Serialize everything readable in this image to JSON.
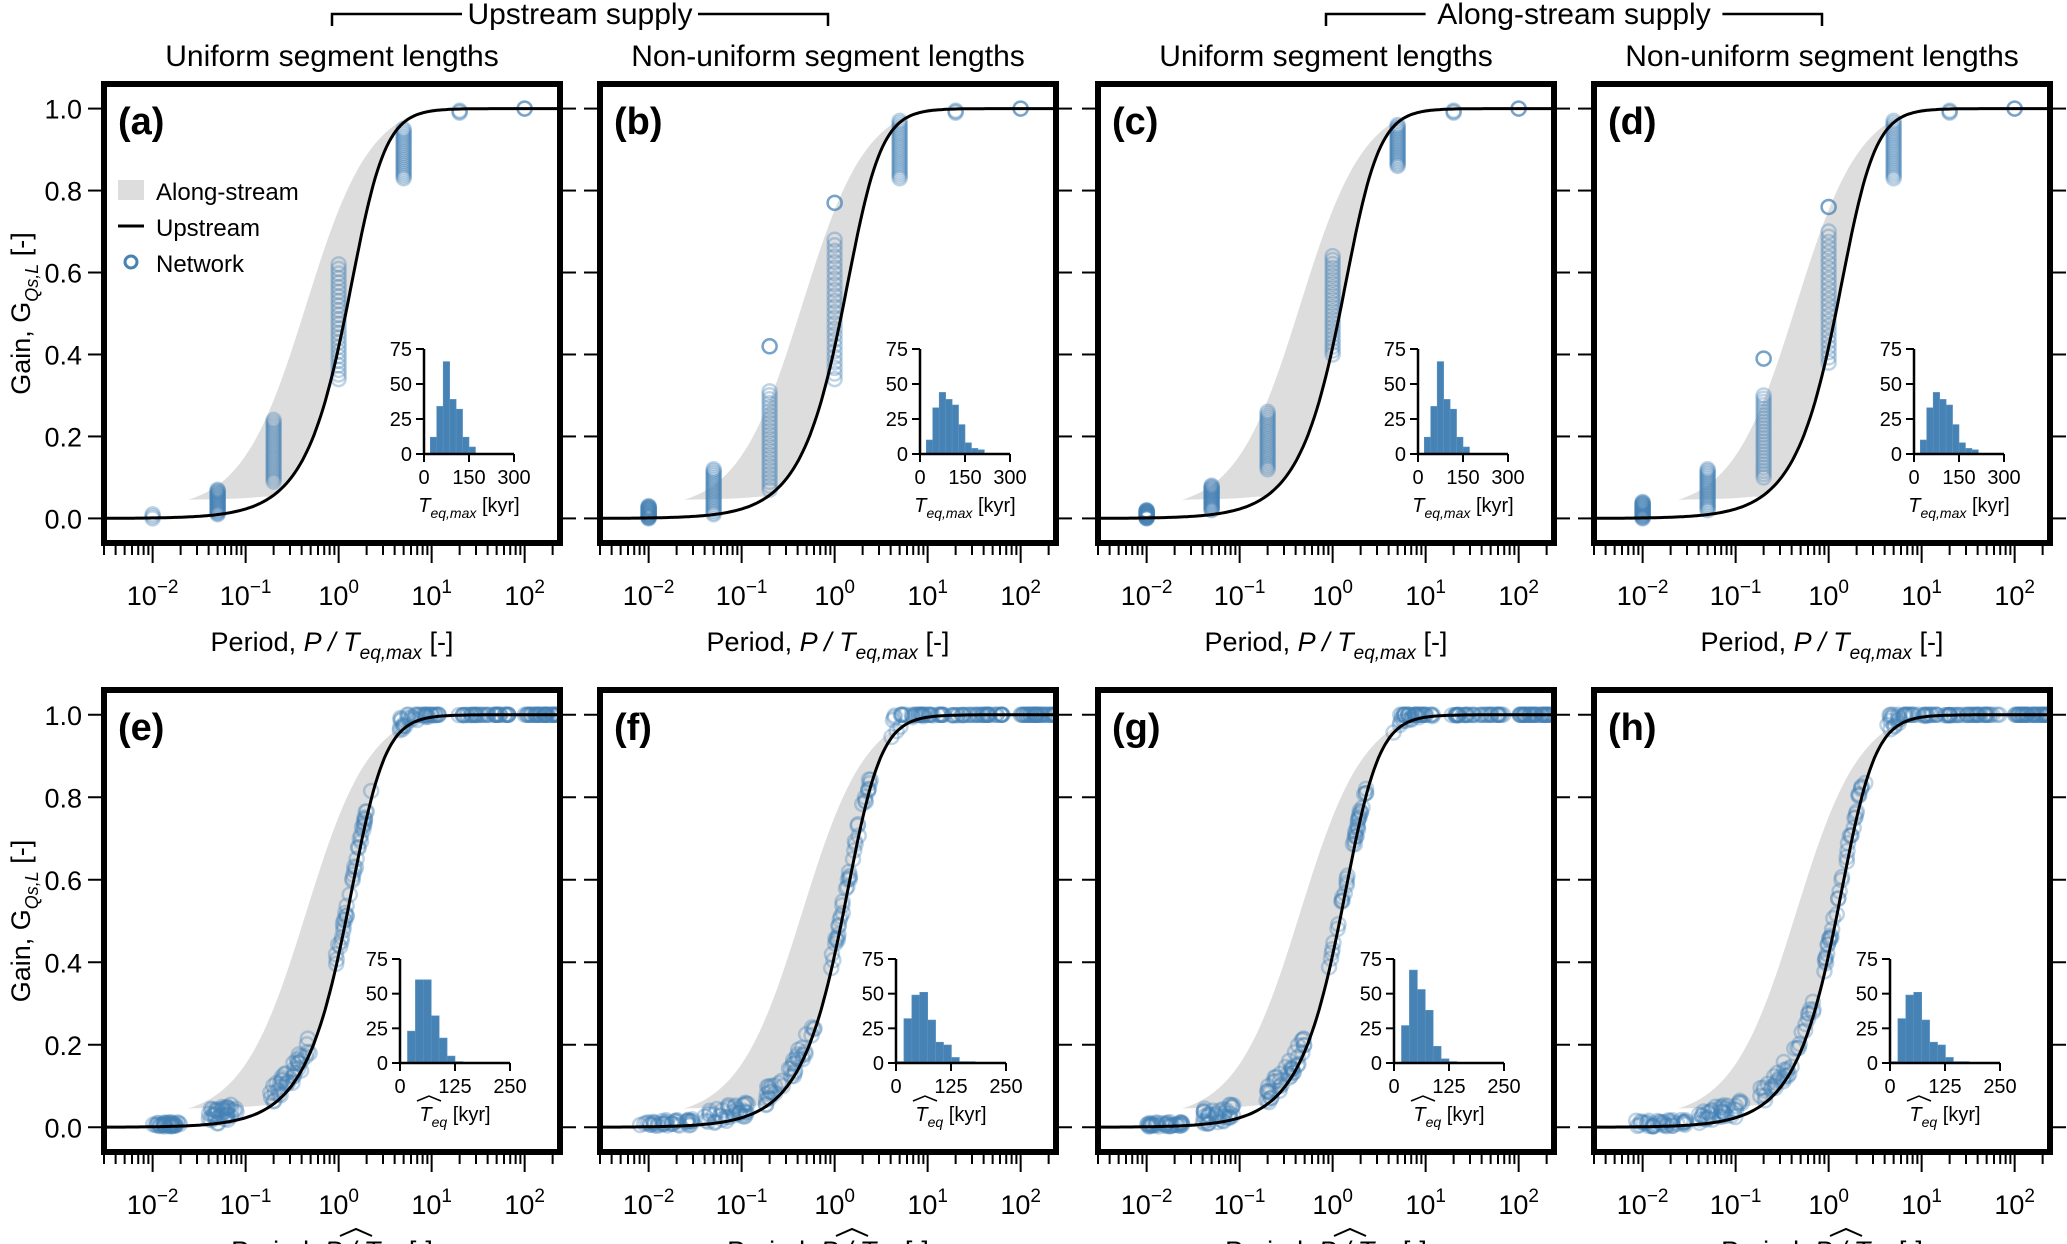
{
  "headers": {
    "groups": [
      {
        "label": "Upstream supply",
        "columns": [
          0,
          1
        ]
      },
      {
        "label": "Along-stream supply",
        "columns": [
          2,
          3
        ]
      }
    ],
    "column_titles": [
      "Uniform segment lengths",
      "Non-uniform segment lengths",
      "Uniform segment lengths",
      "Non-uniform segment lengths"
    ]
  },
  "legend": {
    "placement": "upper-left of panel (a)",
    "items": [
      {
        "label": "Along-stream",
        "kind": "band",
        "color": "#dddddd"
      },
      {
        "label": "Upstream",
        "kind": "line",
        "color": "#000000"
      },
      {
        "label": "Network",
        "kind": "marker",
        "color": "#4682b4"
      }
    ]
  },
  "colors": {
    "band": "#dddddd",
    "curve": "#000000",
    "points": "#4682b4",
    "hist": "#4682b4"
  },
  "chart_data": [
    {
      "id": "a",
      "type": "scatter",
      "panel_label": "(a)",
      "row": 0,
      "col": 0,
      "xlabel_prefix": "Period, ",
      "xlabel_var": "P / T",
      "xlabel_sub": "eq,max",
      "xlabel_suffix": " [-]",
      "ylabel": "Gain, G",
      "ylabel_sub": "Qs,L",
      "ylabel_suffix": " [-]",
      "xscale": "log",
      "xlim": [
        0.003,
        240
      ],
      "ylim": [
        -0.06,
        1.06
      ],
      "xticks": [
        "10^-2",
        "10^-1",
        "10^0",
        "10^1",
        "10^2"
      ],
      "yticks": [
        "0.0",
        "0.2",
        "0.4",
        "0.6",
        "0.8",
        "1.0"
      ],
      "points": [
        {
          "x": 0.01,
          "ymin": 0.0,
          "ymax": 0.01
        },
        {
          "x": 0.05,
          "ymin": 0.01,
          "ymax": 0.07
        },
        {
          "x": 0.2,
          "ymin": 0.09,
          "ymax": 0.24
        },
        {
          "x": 1.0,
          "ymin": 0.34,
          "ymax": 0.62
        },
        {
          "x": 5.0,
          "ymin": 0.83,
          "ymax": 0.95
        },
        {
          "x": 20,
          "ymin": 0.99,
          "ymax": 0.995
        },
        {
          "x": 100,
          "ymin": 1.0,
          "ymax": 1.0
        }
      ],
      "scatter_mode": "columns",
      "inset": {
        "type": "bar",
        "xlabel_var": "T",
        "xlabel_sub": "eq,max",
        "xlabel_suffix": " [kyr]",
        "xticks": [
          0,
          150,
          300
        ],
        "yticks": [
          0,
          25,
          50,
          75
        ],
        "xlim": [
          0,
          300
        ],
        "ylim": [
          0,
          75
        ],
        "bin_start": 21,
        "bin_width": 21.5,
        "counts": [
          12,
          34,
          66,
          39,
          32,
          12,
          5
        ]
      }
    },
    {
      "id": "b",
      "type": "scatter",
      "panel_label": "(b)",
      "row": 0,
      "col": 1,
      "xlabel_prefix": "Period, ",
      "xlabel_var": "P / T",
      "xlabel_sub": "eq,max",
      "xlabel_suffix": " [-]",
      "xscale": "log",
      "xlim": [
        0.003,
        240
      ],
      "ylim": [
        -0.06,
        1.06
      ],
      "xticks": [
        "10^-2",
        "10^-1",
        "10^0",
        "10^1",
        "10^2"
      ],
      "yticks": [
        "0.0",
        "0.2",
        "0.4",
        "0.6",
        "0.8",
        "1.0"
      ],
      "points": [
        {
          "x": 0.01,
          "ymin": 0.0,
          "ymax": 0.03
        },
        {
          "x": 0.05,
          "ymin": 0.01,
          "ymax": 0.12
        },
        {
          "x": 0.2,
          "ymin": 0.07,
          "ymax": 0.31
        },
        {
          "x": 0.2,
          "ymin": 0.42,
          "ymax": 0.42
        },
        {
          "x": 1.0,
          "ymin": 0.34,
          "ymax": 0.68
        },
        {
          "x": 1.0,
          "ymin": 0.77,
          "ymax": 0.77
        },
        {
          "x": 5.0,
          "ymin": 0.83,
          "ymax": 0.97
        },
        {
          "x": 20,
          "ymin": 0.99,
          "ymax": 0.995
        },
        {
          "x": 100,
          "ymin": 1.0,
          "ymax": 1.0
        }
      ],
      "scatter_mode": "columns",
      "inset": {
        "type": "bar",
        "xlabel_var": "T",
        "xlabel_sub": "eq,max",
        "xlabel_suffix": " [kyr]",
        "xticks": [
          0,
          150,
          300
        ],
        "yticks": [
          0,
          25,
          50,
          75
        ],
        "xlim": [
          0,
          300
        ],
        "ylim": [
          0,
          75
        ],
        "bin_start": 21,
        "bin_width": 21.5,
        "counts": [
          10,
          33,
          44,
          39,
          35,
          21,
          8,
          4,
          3
        ]
      }
    },
    {
      "id": "c",
      "type": "scatter",
      "panel_label": "(c)",
      "row": 0,
      "col": 2,
      "xlabel_prefix": "Period, ",
      "xlabel_var": "P / T",
      "xlabel_sub": "eq,max",
      "xlabel_suffix": " [-]",
      "xscale": "log",
      "xlim": [
        0.003,
        240
      ],
      "ylim": [
        -0.06,
        1.06
      ],
      "xticks": [
        "10^-2",
        "10^-1",
        "10^0",
        "10^1",
        "10^2"
      ],
      "yticks": [
        "0.0",
        "0.2",
        "0.4",
        "0.6",
        "0.8",
        "1.0"
      ],
      "points": [
        {
          "x": 0.01,
          "ymin": 0.0,
          "ymax": 0.02
        },
        {
          "x": 0.05,
          "ymin": 0.02,
          "ymax": 0.08
        },
        {
          "x": 0.2,
          "ymin": 0.12,
          "ymax": 0.26
        },
        {
          "x": 1.0,
          "ymin": 0.4,
          "ymax": 0.64
        },
        {
          "x": 5.0,
          "ymin": 0.86,
          "ymax": 0.96
        },
        {
          "x": 20,
          "ymin": 0.99,
          "ymax": 0.995
        },
        {
          "x": 100,
          "ymin": 1.0,
          "ymax": 1.0
        }
      ],
      "scatter_mode": "columns",
      "inset": {
        "type": "bar",
        "xlabel_var": "T",
        "xlabel_sub": "eq,max",
        "xlabel_suffix": " [kyr]",
        "xticks": [
          0,
          150,
          300
        ],
        "yticks": [
          0,
          25,
          50,
          75
        ],
        "xlim": [
          0,
          300
        ],
        "ylim": [
          0,
          75
        ],
        "bin_start": 21,
        "bin_width": 21.5,
        "counts": [
          12,
          34,
          66,
          39,
          32,
          12,
          5
        ]
      }
    },
    {
      "id": "d",
      "type": "scatter",
      "panel_label": "(d)",
      "row": 0,
      "col": 3,
      "xlabel_prefix": "Period, ",
      "xlabel_var": "P / T",
      "xlabel_sub": "eq,max",
      "xlabel_suffix": " [-]",
      "xscale": "log",
      "xlim": [
        0.003,
        240
      ],
      "ylim": [
        -0.06,
        1.06
      ],
      "xticks": [
        "10^-2",
        "10^-1",
        "10^0",
        "10^1",
        "10^2"
      ],
      "yticks": [
        "0.0",
        "0.2",
        "0.4",
        "0.6",
        "0.8",
        "1.0"
      ],
      "points": [
        {
          "x": 0.01,
          "ymin": 0.0,
          "ymax": 0.04
        },
        {
          "x": 0.05,
          "ymin": 0.02,
          "ymax": 0.12
        },
        {
          "x": 0.2,
          "ymin": 0.1,
          "ymax": 0.3
        },
        {
          "x": 0.2,
          "ymin": 0.39,
          "ymax": 0.39
        },
        {
          "x": 1.0,
          "ymin": 0.38,
          "ymax": 0.7
        },
        {
          "x": 1.0,
          "ymin": 0.76,
          "ymax": 0.76
        },
        {
          "x": 5.0,
          "ymin": 0.83,
          "ymax": 0.97
        },
        {
          "x": 20,
          "ymin": 0.99,
          "ymax": 0.995
        },
        {
          "x": 100,
          "ymin": 1.0,
          "ymax": 1.0
        }
      ],
      "scatter_mode": "columns",
      "inset": {
        "type": "bar",
        "xlabel_var": "T",
        "xlabel_sub": "eq,max",
        "xlabel_suffix": " [kyr]",
        "xticks": [
          0,
          150,
          300
        ],
        "yticks": [
          0,
          25,
          50,
          75
        ],
        "xlim": [
          0,
          300
        ],
        "ylim": [
          0,
          75
        ],
        "bin_start": 21,
        "bin_width": 21.5,
        "counts": [
          10,
          33,
          44,
          39,
          35,
          21,
          8,
          4,
          3
        ]
      }
    },
    {
      "id": "e",
      "type": "scatter",
      "panel_label": "(e)",
      "row": 1,
      "col": 0,
      "xlabel_prefix": "Period, ",
      "xlabel_var": "P / T",
      "xlabel_sub": "eq",
      "xlabel_hat": true,
      "xlabel_suffix": " [-]",
      "ylabel": "Gain, G",
      "ylabel_sub": "Qs,L",
      "ylabel_suffix": " [-]",
      "xscale": "log",
      "xlim": [
        0.003,
        240
      ],
      "ylim": [
        -0.06,
        1.06
      ],
      "xticks": [
        "10^-2",
        "10^-1",
        "10^0",
        "10^1",
        "10^2"
      ],
      "yticks": [
        "0.0",
        "0.2",
        "0.4",
        "0.6",
        "0.8",
        "1.0"
      ],
      "scatter_mode": "along-curve",
      "clusters": [
        {
          "xmin": 0.01,
          "xmax": 0.02,
          "spread": 0.01
        },
        {
          "xmin": 0.04,
          "xmax": 0.08,
          "spread": 0.04
        },
        {
          "xmin": 0.18,
          "xmax": 0.5,
          "spread": 0.05
        },
        {
          "xmin": 0.9,
          "xmax": 2.3,
          "spread": 0.03
        },
        {
          "xmin": 4.5,
          "xmax": 12,
          "spread": 0.04
        },
        {
          "xmin": 18,
          "xmax": 70,
          "spread": 0.0
        },
        {
          "xmin": 100,
          "xmax": 240,
          "spread": 0.0
        }
      ],
      "inset": {
        "type": "bar",
        "xlabel_var": "T",
        "xlabel_sub": "eq",
        "xlabel_hat": true,
        "xlabel_suffix": " [kyr]",
        "xticks": [
          0,
          125,
          250
        ],
        "yticks": [
          0,
          25,
          50,
          75
        ],
        "xlim": [
          0,
          250
        ],
        "ylim": [
          0,
          75
        ],
        "bin_start": 17,
        "bin_width": 18,
        "counts": [
          23,
          60,
          60,
          34,
          18,
          5,
          1
        ]
      }
    },
    {
      "id": "f",
      "type": "scatter",
      "panel_label": "(f)",
      "row": 1,
      "col": 1,
      "xlabel_prefix": "Period, ",
      "xlabel_var": "P / T",
      "xlabel_sub": "eq",
      "xlabel_hat": true,
      "xlabel_suffix": " [-]",
      "xscale": "log",
      "xlim": [
        0.003,
        240
      ],
      "ylim": [
        -0.06,
        1.06
      ],
      "xticks": [
        "10^-2",
        "10^-1",
        "10^0",
        "10^1",
        "10^2"
      ],
      "yticks": [
        "0.0",
        "0.2",
        "0.4",
        "0.6",
        "0.8",
        "1.0"
      ],
      "scatter_mode": "along-curve",
      "clusters": [
        {
          "xmin": 0.008,
          "xmax": 0.03,
          "spread": 0.015
        },
        {
          "xmin": 0.04,
          "xmax": 0.12,
          "spread": 0.04
        },
        {
          "xmin": 0.18,
          "xmax": 0.7,
          "spread": 0.05
        },
        {
          "xmin": 0.9,
          "xmax": 2.5,
          "spread": 0.04
        },
        {
          "xmin": 4,
          "xmax": 15,
          "spread": 0.05
        },
        {
          "xmin": 18,
          "xmax": 70,
          "spread": 0.0
        },
        {
          "xmin": 100,
          "xmax": 240,
          "spread": 0.0
        }
      ],
      "inset": {
        "type": "bar",
        "xlabel_var": "T",
        "xlabel_sub": "eq",
        "xlabel_hat": true,
        "xlabel_suffix": " [kyr]",
        "xticks": [
          0,
          125,
          250
        ],
        "yticks": [
          0,
          25,
          50,
          75
        ],
        "xlim": [
          0,
          250
        ],
        "ylim": [
          0,
          75
        ],
        "bin_start": 0,
        "bin_width": 18,
        "counts": [
          1,
          32,
          49,
          51,
          31,
          15,
          13,
          4,
          1,
          1
        ]
      }
    },
    {
      "id": "g",
      "type": "scatter",
      "panel_label": "(g)",
      "row": 1,
      "col": 2,
      "xlabel_prefix": "Period, ",
      "xlabel_var": "P / T",
      "xlabel_sub": "eq",
      "xlabel_hat": true,
      "xlabel_suffix": " [-]",
      "xscale": "log",
      "xlim": [
        0.003,
        240
      ],
      "ylim": [
        -0.06,
        1.06
      ],
      "xticks": [
        "10^-2",
        "10^-1",
        "10^0",
        "10^1",
        "10^2"
      ],
      "yticks": [
        "0.0",
        "0.2",
        "0.4",
        "0.6",
        "0.8",
        "1.0"
      ],
      "scatter_mode": "along-curve",
      "clusters": [
        {
          "xmin": 0.01,
          "xmax": 0.025,
          "spread": 0.01
        },
        {
          "xmin": 0.04,
          "xmax": 0.09,
          "spread": 0.04
        },
        {
          "xmin": 0.18,
          "xmax": 0.5,
          "spread": 0.05
        },
        {
          "xmin": 0.9,
          "xmax": 2.3,
          "spread": 0.03
        },
        {
          "xmin": 4.5,
          "xmax": 12,
          "spread": 0.04
        },
        {
          "xmin": 18,
          "xmax": 70,
          "spread": 0.0
        },
        {
          "xmin": 100,
          "xmax": 240,
          "spread": 0.0
        }
      ],
      "inset": {
        "type": "bar",
        "xlabel_var": "T",
        "xlabel_sub": "eq",
        "xlabel_hat": true,
        "xlabel_suffix": " [kyr]",
        "xticks": [
          0,
          125,
          250
        ],
        "yticks": [
          0,
          25,
          50,
          75
        ],
        "xlim": [
          0,
          250
        ],
        "ylim": [
          0,
          75
        ],
        "bin_start": 17,
        "bin_width": 18,
        "counts": [
          27,
          67,
          53,
          38,
          12,
          3,
          1
        ]
      }
    },
    {
      "id": "h",
      "type": "scatter",
      "panel_label": "(h)",
      "row": 1,
      "col": 3,
      "xlabel_prefix": "Period, ",
      "xlabel_var": "P / T",
      "xlabel_sub": "eq",
      "xlabel_hat": true,
      "xlabel_suffix": " [-]",
      "xscale": "log",
      "xlim": [
        0.003,
        240
      ],
      "ylim": [
        -0.06,
        1.06
      ],
      "xticks": [
        "10^-2",
        "10^-1",
        "10^0",
        "10^1",
        "10^2"
      ],
      "yticks": [
        "0.0",
        "0.2",
        "0.4",
        "0.6",
        "0.8",
        "1.0"
      ],
      "scatter_mode": "along-curve",
      "clusters": [
        {
          "xmin": 0.008,
          "xmax": 0.03,
          "spread": 0.015
        },
        {
          "xmin": 0.04,
          "xmax": 0.12,
          "spread": 0.04
        },
        {
          "xmin": 0.18,
          "xmax": 0.7,
          "spread": 0.05
        },
        {
          "xmin": 0.9,
          "xmax": 2.5,
          "spread": 0.04
        },
        {
          "xmin": 4,
          "xmax": 15,
          "spread": 0.05
        },
        {
          "xmin": 18,
          "xmax": 70,
          "spread": 0.0
        },
        {
          "xmin": 100,
          "xmax": 240,
          "spread": 0.0
        }
      ],
      "inset": {
        "type": "bar",
        "xlabel_var": "T",
        "xlabel_sub": "eq",
        "xlabel_hat": true,
        "xlabel_suffix": " [kyr]",
        "xticks": [
          0,
          125,
          250
        ],
        "yticks": [
          0,
          25,
          50,
          75
        ],
        "xlim": [
          0,
          250
        ],
        "ylim": [
          0,
          75
        ],
        "bin_start": 0,
        "bin_width": 18,
        "counts": [
          1,
          32,
          49,
          51,
          31,
          15,
          13,
          4,
          1,
          1
        ]
      }
    }
  ]
}
